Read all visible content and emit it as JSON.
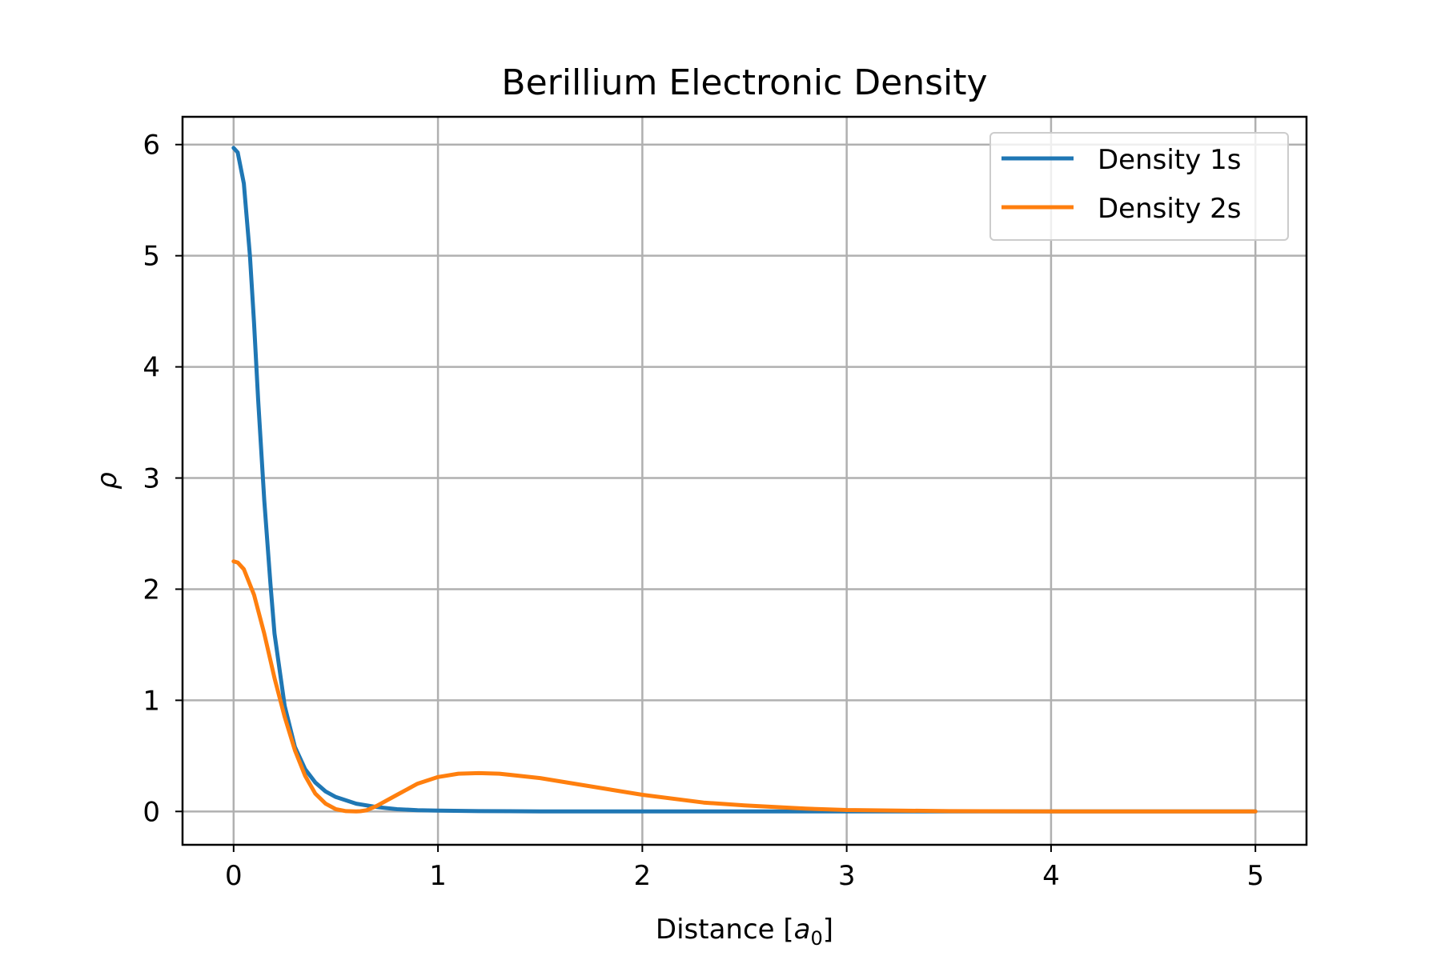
{
  "chart_data": {
    "type": "line",
    "title": "Berillium Electronic Density",
    "xlabel": "Distance [a₀]",
    "xlabel_main": "Distance [",
    "xlabel_var": "a",
    "xlabel_sub": "0",
    "xlabel_end": "]",
    "ylabel": "ρ",
    "xlim": [
      -0.25,
      5.25
    ],
    "ylim": [
      -0.3,
      6.25
    ],
    "xticks": [
      0,
      1,
      2,
      3,
      4,
      5
    ],
    "yticks": [
      0,
      1,
      2,
      3,
      4,
      5,
      6
    ],
    "xtick_labels": [
      "0",
      "1",
      "2",
      "3",
      "4",
      "5"
    ],
    "ytick_labels": [
      "0",
      "1",
      "2",
      "3",
      "4",
      "5",
      "6"
    ],
    "grid": true,
    "legend_position": "top-right",
    "series": [
      {
        "name": "Density 1s",
        "color": "#1f77b4",
        "x": [
          0,
          0.02,
          0.05,
          0.08,
          0.1,
          0.12,
          0.15,
          0.18,
          0.2,
          0.25,
          0.3,
          0.35,
          0.4,
          0.45,
          0.5,
          0.6,
          0.7,
          0.8,
          0.9,
          1.0,
          1.2,
          1.5,
          2.0,
          2.5,
          3.0,
          3.5,
          4.0,
          4.5,
          5.0
        ],
        "y": [
          5.97,
          5.93,
          5.65,
          5.0,
          4.4,
          3.7,
          2.8,
          2.05,
          1.6,
          0.95,
          0.58,
          0.38,
          0.26,
          0.18,
          0.13,
          0.07,
          0.04,
          0.02,
          0.012,
          0.007,
          0.003,
          0.001,
          0.0,
          0.0,
          0.0,
          0.0,
          0.0,
          0.0,
          0.0
        ]
      },
      {
        "name": "Density 2s",
        "color": "#ff7f0e",
        "x": [
          0,
          0.02,
          0.05,
          0.1,
          0.15,
          0.2,
          0.25,
          0.3,
          0.35,
          0.4,
          0.45,
          0.5,
          0.55,
          0.6,
          0.62,
          0.65,
          0.7,
          0.8,
          0.9,
          1.0,
          1.1,
          1.2,
          1.3,
          1.5,
          1.7,
          2.0,
          2.3,
          2.5,
          2.8,
          3.0,
          3.5,
          4.0,
          4.5,
          5.0
        ],
        "y": [
          2.25,
          2.24,
          2.18,
          1.95,
          1.6,
          1.2,
          0.85,
          0.55,
          0.32,
          0.16,
          0.07,
          0.02,
          0.003,
          0.0,
          0.002,
          0.01,
          0.05,
          0.15,
          0.25,
          0.31,
          0.34,
          0.345,
          0.34,
          0.3,
          0.24,
          0.15,
          0.08,
          0.055,
          0.025,
          0.013,
          0.003,
          0.0005,
          0.0001,
          0.0
        ]
      }
    ]
  }
}
